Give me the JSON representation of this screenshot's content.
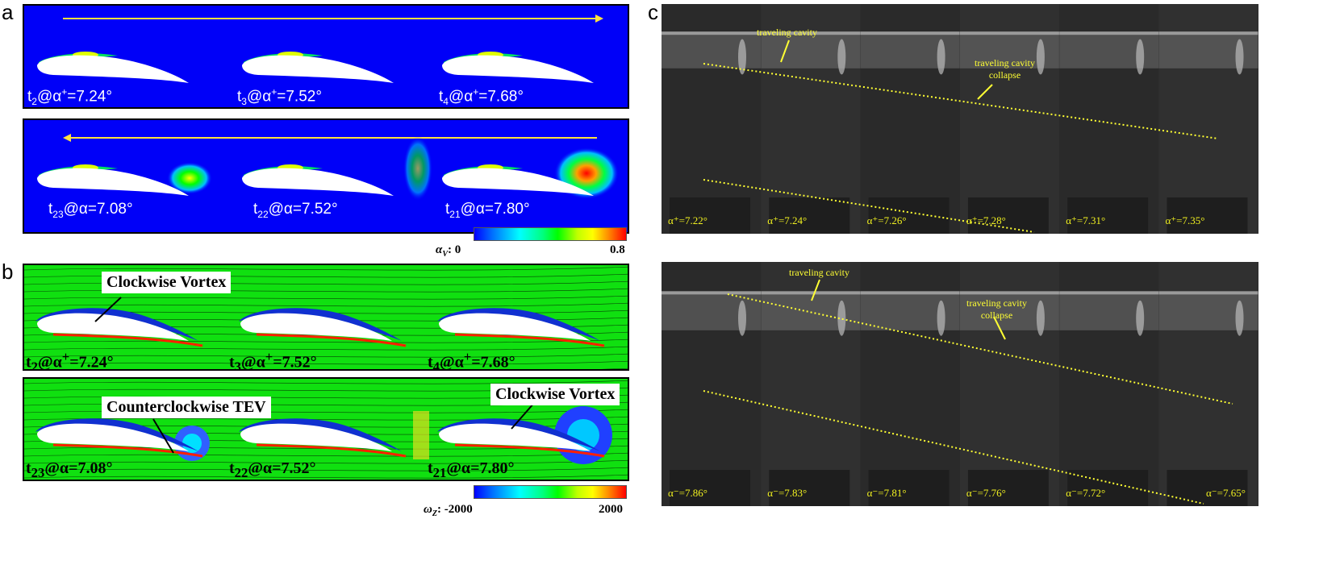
{
  "panels": {
    "a": "a",
    "b": "b",
    "c": "c"
  },
  "panel_a": {
    "top_labels": [
      {
        "t": "t",
        "sub": "2",
        "rest": "@α",
        "sup": "+",
        "val": "=7.24°"
      },
      {
        "t": "t",
        "sub": "3",
        "rest": "@α",
        "sup": "+",
        "val": "=7.52°"
      },
      {
        "t": "t",
        "sub": "4",
        "rest": "@α",
        "sup": "+",
        "val": "=7.68°"
      }
    ],
    "bottom_labels": [
      {
        "t": "t",
        "sub": "23",
        "rest": "@α",
        "sup": "",
        "val": "=7.08°"
      },
      {
        "t": "t",
        "sub": "22",
        "rest": "@α",
        "sup": "",
        "val": "=7.52°"
      },
      {
        "t": "t",
        "sub": "21",
        "rest": "@α",
        "sup": "",
        "val": "=7.80°"
      }
    ],
    "colorbar": {
      "variable": "α",
      "variable_sub": "V",
      "min_label": ": 0",
      "max_label": "0.8",
      "min": 0,
      "max": 0.8
    }
  },
  "panel_b": {
    "top_labels": [
      {
        "t": "t",
        "sub": "2",
        "rest": "@α",
        "sup": "+",
        "val": "=7.24°"
      },
      {
        "t": "t",
        "sub": "3",
        "rest": "@α",
        "sup": "+",
        "val": "=7.52°"
      },
      {
        "t": "t",
        "sub": "4",
        "rest": "@α",
        "sup": "+",
        "val": "=7.68°"
      }
    ],
    "bottom_labels": [
      {
        "t": "t",
        "sub": "23",
        "rest": "@α",
        "sup": "",
        "val": "=7.08°"
      },
      {
        "t": "t",
        "sub": "22",
        "rest": "@α",
        "sup": "",
        "val": "=7.52°"
      },
      {
        "t": "t",
        "sub": "21",
        "rest": "@α",
        "sup": "",
        "val": "=7.80°"
      }
    ],
    "callouts": {
      "clockwise_top": "Clockwise Vortex",
      "counterclockwise": "Counterclockwise TEV",
      "clockwise_bottom": "Clockwise Vortex"
    },
    "colorbar": {
      "variable": "ω",
      "variable_sub": "Z",
      "min_label": ": -2000",
      "max_label": "2000",
      "min": -2000,
      "max": 2000
    }
  },
  "panel_c": {
    "top_frames": [
      "α⁺=7.22°",
      "α⁺=7.24°",
      "α⁺=7.26°",
      "α⁺=7.28°",
      "α⁺=7.31°",
      "α⁺=7.35°"
    ],
    "bottom_frames": [
      "α⁻=7.86°",
      "α⁻=7.83°",
      "α⁻=7.81°",
      "α⁻=7.76°",
      "α⁻=7.72°",
      "α⁻=7.65°"
    ],
    "annotations": {
      "traveling_cavity": "traveling cavity",
      "collapse_line1": "traveling cavity",
      "collapse_line2": "collapse"
    }
  },
  "colors": {
    "flow_background_a": "#0000ff",
    "flow_background_b": "#00e000",
    "arrow": "#ffe040",
    "photo_annotation": "#ffff33"
  }
}
